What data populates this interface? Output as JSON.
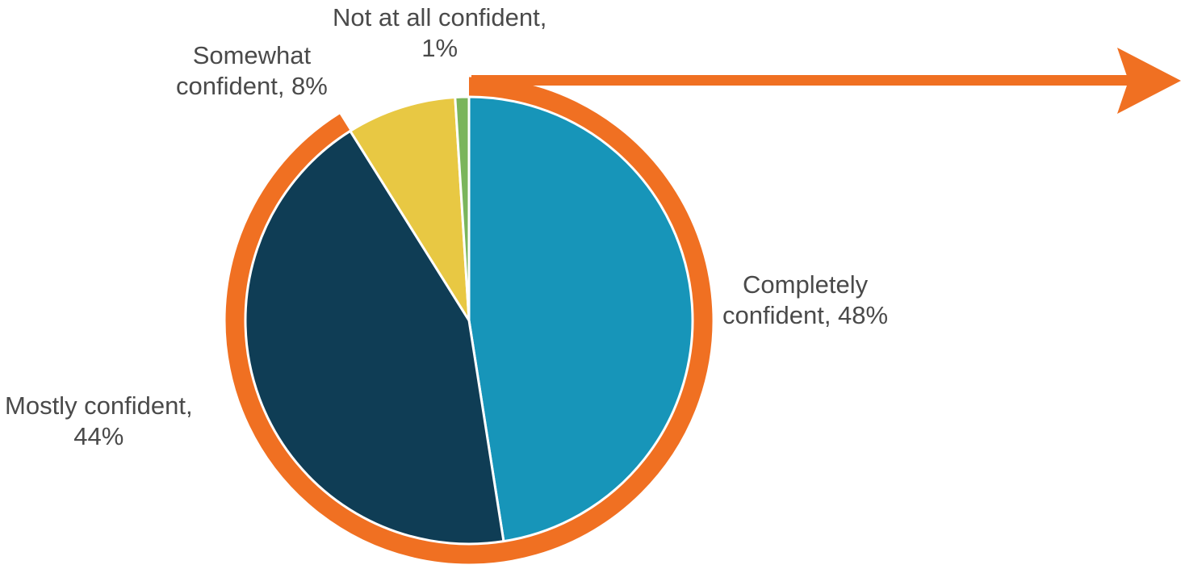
{
  "chart_data": {
    "type": "pie",
    "title": "",
    "slices": [
      {
        "label": "Completely confident",
        "value": 48,
        "color": "#1795b9"
      },
      {
        "label": "Mostly confident",
        "value": 44,
        "color": "#0f3d55"
      },
      {
        "label": "Somewhat confident",
        "value": 8,
        "color": "#e8c843"
      },
      {
        "label": "Not at all confident",
        "value": 1,
        "color": "#7ab55c"
      }
    ],
    "data_labels": {
      "completely": [
        "Completely",
        "confident, 48%"
      ],
      "mostly": [
        "Mostly confident,",
        "44%"
      ],
      "somewhat": [
        "Somewhat",
        "confident, 8%"
      ],
      "not_at_all": [
        "Not at all confident,",
        "1%"
      ]
    },
    "highlight": {
      "color": "#f07022",
      "target": [
        "Completely confident",
        "Mostly confident"
      ],
      "arrow_direction": "right"
    }
  }
}
